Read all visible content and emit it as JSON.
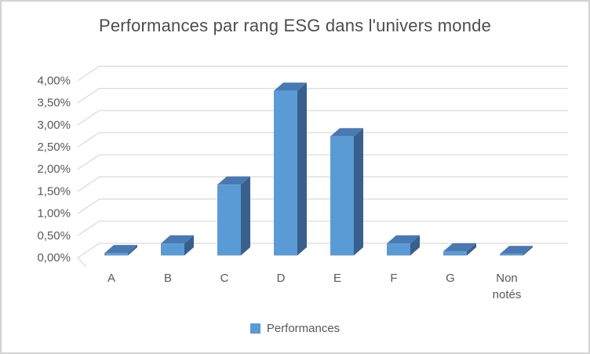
{
  "chart_data": {
    "type": "bar",
    "style": "3d-column",
    "title": "Performances par rang ESG dans l'univers monde",
    "categories": [
      "A",
      "B",
      "C",
      "D",
      "E",
      "F",
      "G",
      "Non notés"
    ],
    "series": [
      {
        "name": "Performances",
        "values": [
          0.05,
          0.27,
          1.6,
          3.72,
          2.69,
          0.27,
          0.09,
          0.03
        ]
      }
    ],
    "value_unit": "%",
    "y_ticks": [
      "0,00%",
      "0,50%",
      "1,00%",
      "1,50%",
      "2,00%",
      "2,50%",
      "3,00%",
      "3,50%",
      "4,00%"
    ],
    "ylim": [
      0,
      4
    ],
    "y_step": 0.5,
    "grid": true,
    "legend_position": "bottom",
    "colors": {
      "bar_front": "#5b9bd5",
      "bar_top": "#4879b2",
      "bar_side": "#395f8d",
      "grid": "#d9d9d9",
      "text": "#595959",
      "title": "#4d4d4d",
      "background": "#ffffff",
      "border": "#d2d2d2"
    }
  }
}
